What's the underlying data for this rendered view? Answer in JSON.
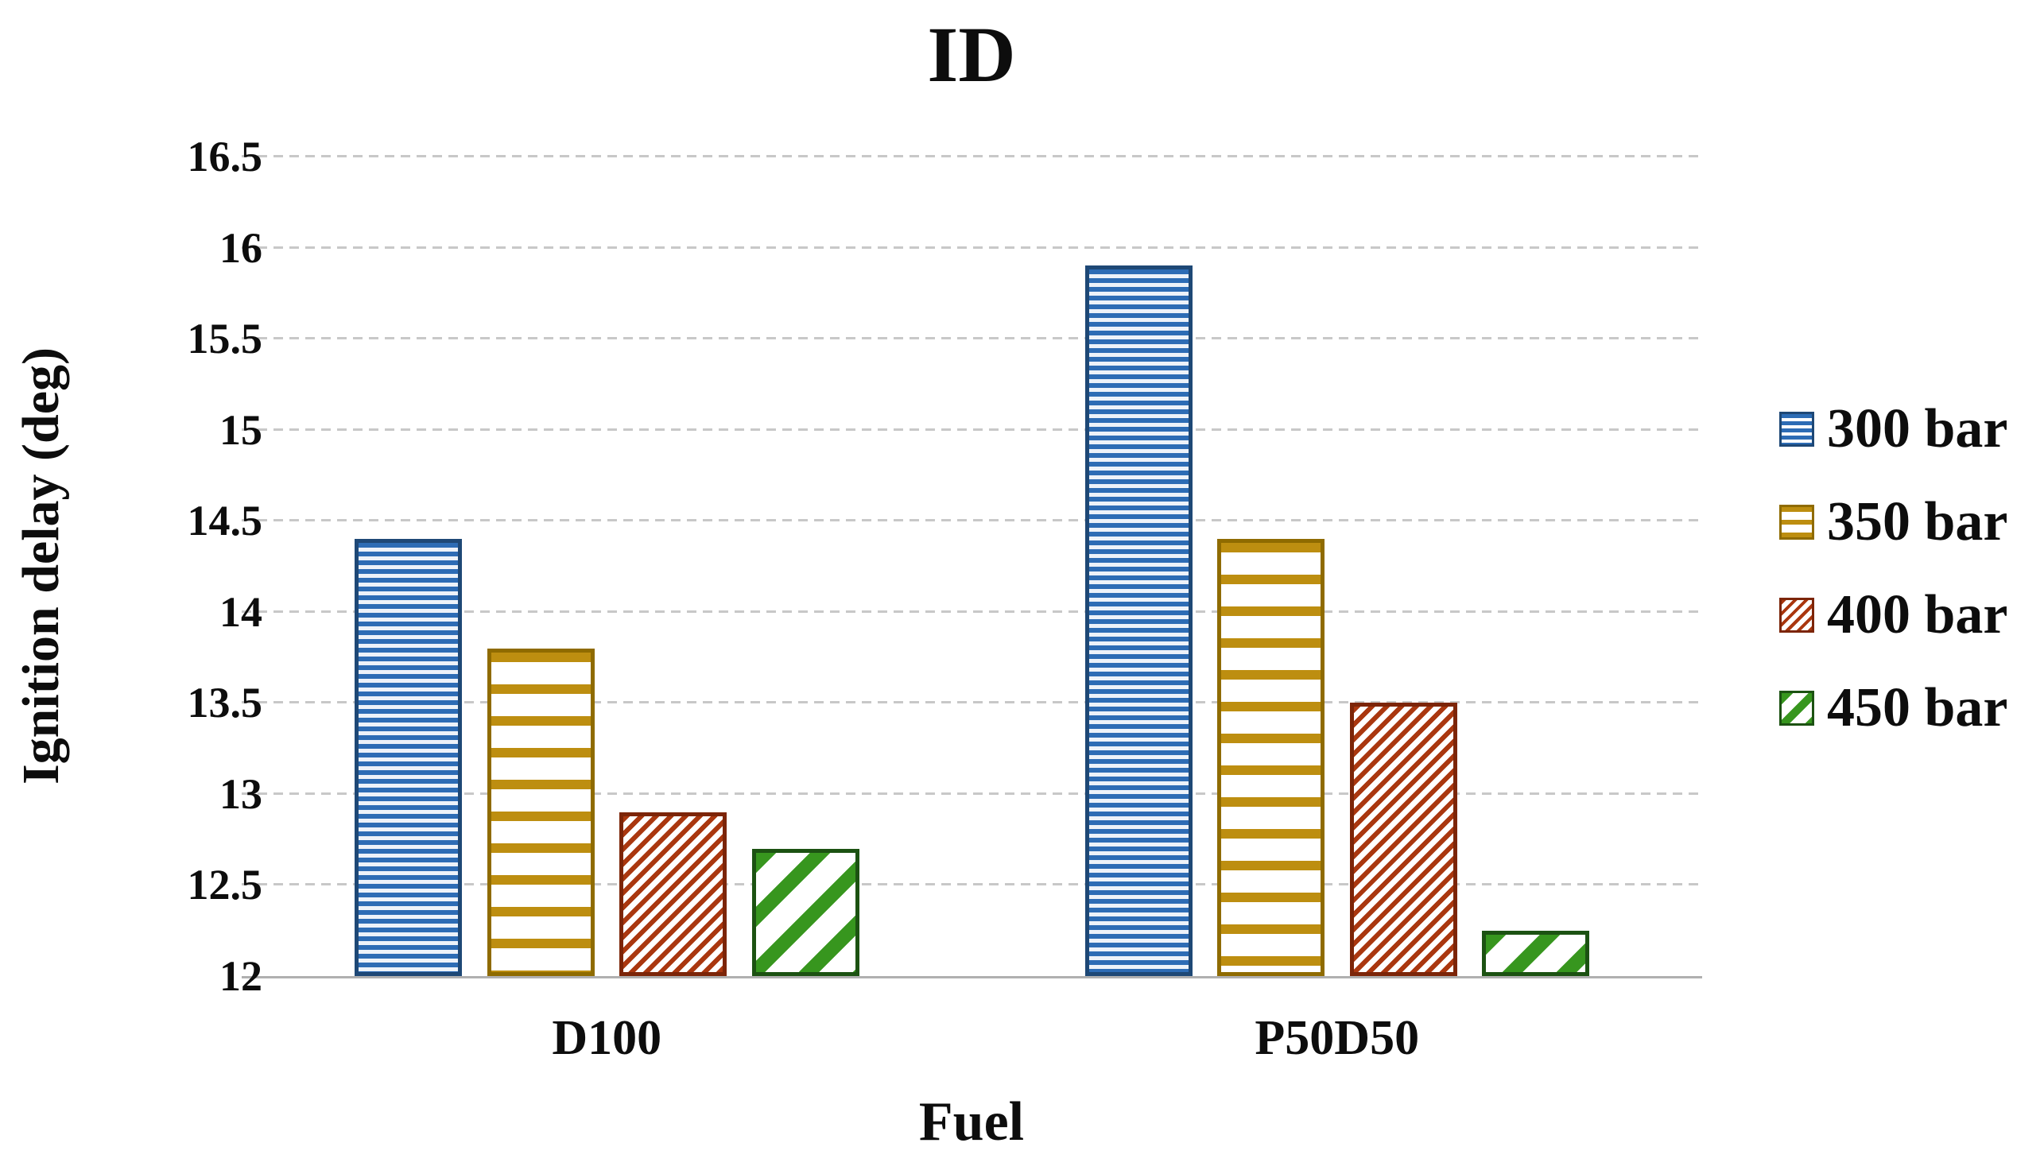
{
  "title": "ID",
  "y_axis": {
    "title": "Ignition delay (deg)",
    "tick_labels": [
      "16.5",
      "16",
      "15.5",
      "15",
      "14.5",
      "14",
      "13.5",
      "13",
      "12.5",
      "12"
    ]
  },
  "x_axis": {
    "title": "Fuel",
    "category_labels": [
      "D100",
      "P50D50"
    ]
  },
  "legend": {
    "items": [
      "300 bar",
      "350 bar",
      "400 bar",
      "450 bar"
    ]
  },
  "chart_data": {
    "type": "bar",
    "title": "ID",
    "xlabel": "Fuel",
    "ylabel": "Ignition delay (deg)",
    "ylim": [
      12,
      16.5
    ],
    "ytick_step": 0.5,
    "grid": true,
    "legend_position": "right",
    "categories": [
      "D100",
      "P50D50"
    ],
    "series": [
      {
        "name": "300 bar",
        "values": [
          14.4,
          15.9
        ],
        "color": "#2d6cb5",
        "border_color": "#1e4876",
        "pattern": "horizontal-dense"
      },
      {
        "name": "350 bar",
        "values": [
          13.8,
          14.4
        ],
        "color": "#bd8e10",
        "border_color": "#8f6b00",
        "pattern": "horizontal-sparse"
      },
      {
        "name": "400 bar",
        "values": [
          12.9,
          13.5
        ],
        "color": "#aa370f",
        "border_color": "#7c2508",
        "pattern": "diagonal-dense"
      },
      {
        "name": "450 bar",
        "values": [
          12.7,
          12.25
        ],
        "color": "#37961e",
        "border_color": "#1c5212",
        "pattern": "diagonal-sparse"
      }
    ]
  }
}
